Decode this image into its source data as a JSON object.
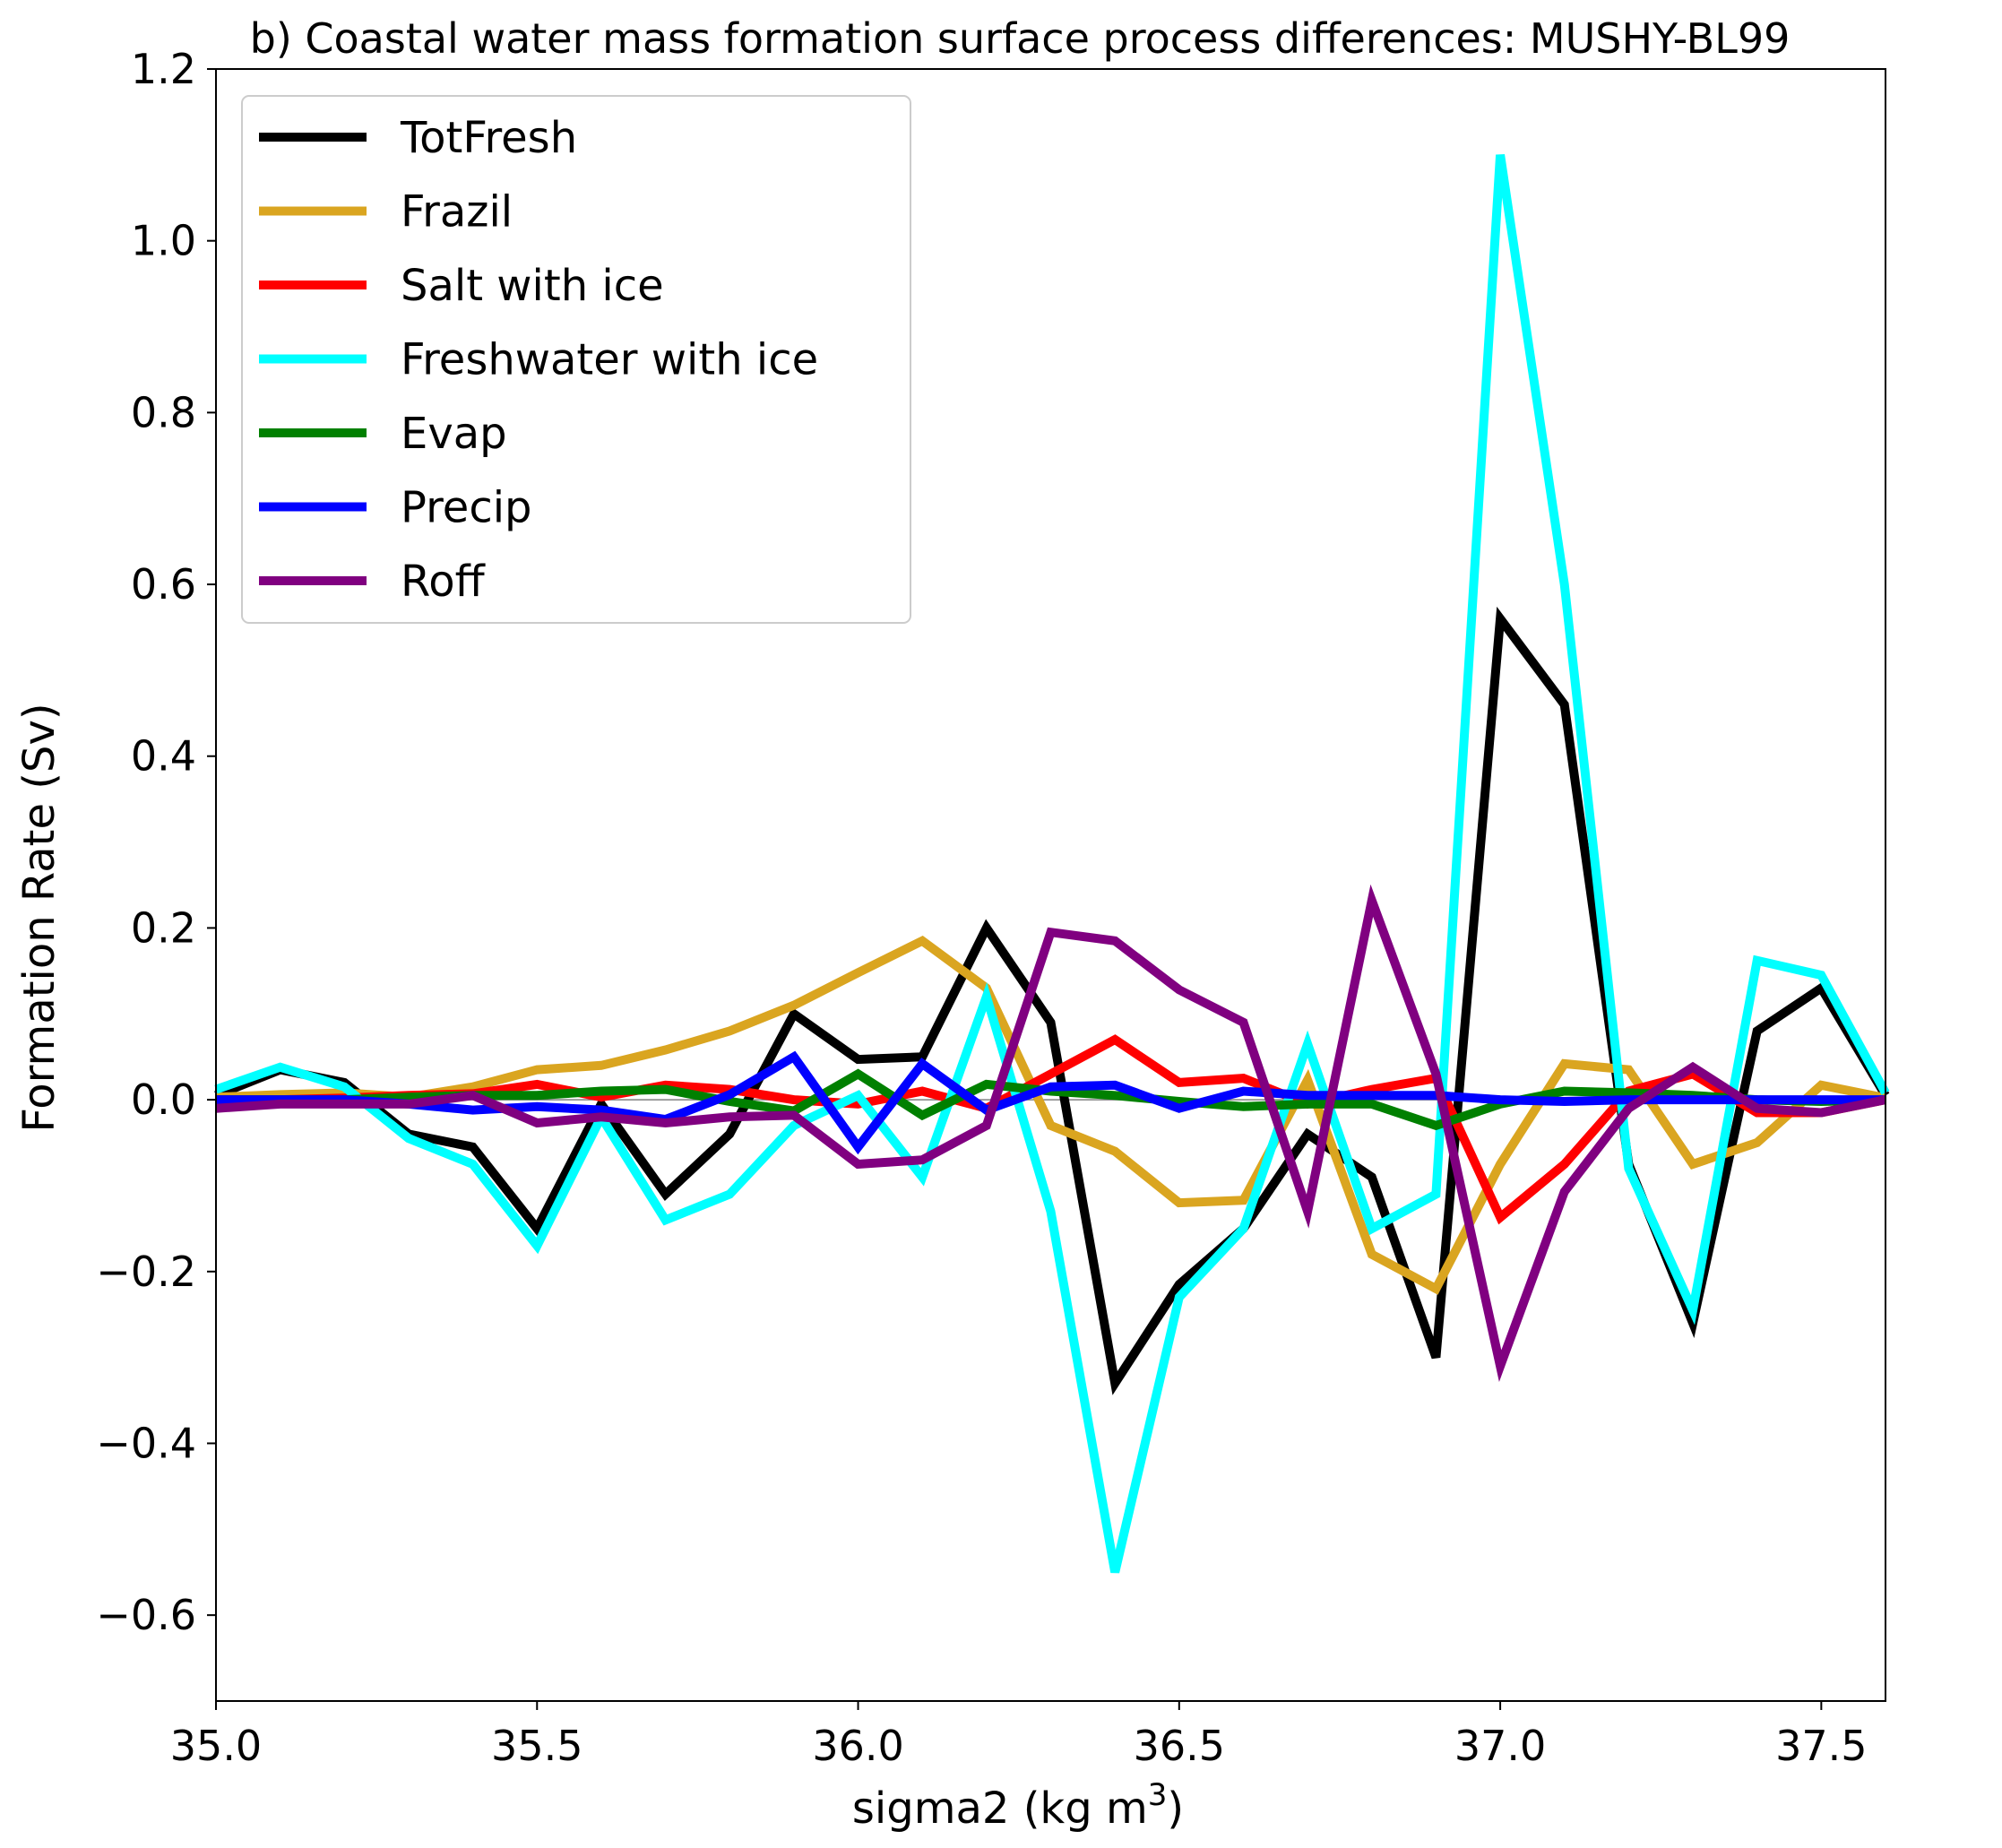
{
  "chart_data": {
    "type": "line",
    "title": "b) Coastal water mass formation surface process differences: MUSHY-BL99",
    "xlabel": "sigma2 (kg m",
    "xlabel_sup": "3",
    "xlabel_end": ")",
    "ylabel": "Formation Rate (Sv)",
    "xlim": [
      35.0,
      37.6
    ],
    "ylim": [
      -0.7,
      1.2
    ],
    "xticks": [
      35.0,
      35.5,
      36.0,
      36.5,
      37.0,
      37.5
    ],
    "xtick_labels": [
      "35.0",
      "35.5",
      "36.0",
      "36.5",
      "37.0",
      "37.5"
    ],
    "yticks": [
      -0.6,
      -0.4,
      -0.2,
      0.0,
      0.2,
      0.4,
      0.6,
      0.8,
      1.0,
      1.2
    ],
    "ytick_labels": [
      "−0.6",
      "−0.4",
      "−0.2",
      "0.0",
      "0.2",
      "0.4",
      "0.6",
      "0.8",
      "1.0",
      "1.2"
    ],
    "zero_line": true,
    "grid": false,
    "legend_position": "upper-left",
    "x": [
      35.0,
      35.1,
      35.2,
      35.3,
      35.4,
      35.5,
      35.6,
      35.7,
      35.8,
      35.9,
      36.0,
      36.1,
      36.2,
      36.3,
      36.4,
      36.5,
      36.6,
      36.7,
      36.8,
      36.9,
      37.0,
      37.1,
      37.2,
      37.3,
      37.4,
      37.5,
      37.6
    ],
    "series": [
      {
        "name": "TotFresh",
        "color": "#000000",
        "values": [
          0.005,
          0.035,
          0.02,
          -0.04,
          -0.055,
          -0.15,
          -0.005,
          -0.11,
          -0.04,
          0.1,
          0.047,
          0.05,
          0.2,
          0.09,
          -0.33,
          -0.215,
          -0.15,
          -0.04,
          -0.09,
          -0.3,
          0.56,
          0.46,
          -0.075,
          -0.26,
          0.08,
          0.13,
          0.005
        ]
      },
      {
        "name": "Frazil",
        "color": "#DAA520",
        "values": [
          0.003,
          0.006,
          0.008,
          0.003,
          0.015,
          0.035,
          0.04,
          0.058,
          0.08,
          0.11,
          0.148,
          0.185,
          0.13,
          -0.03,
          -0.06,
          -0.12,
          -0.117,
          0.023,
          -0.18,
          -0.22,
          -0.075,
          0.042,
          0.035,
          -0.075,
          -0.05,
          0.017,
          0.002
        ]
      },
      {
        "name": "Salt with ice",
        "color": "#FF0000",
        "values": [
          0.0,
          0.0,
          0.002,
          0.005,
          0.007,
          0.018,
          0.003,
          0.017,
          0.012,
          0.0,
          -0.005,
          0.01,
          -0.01,
          0.03,
          0.07,
          0.02,
          0.025,
          -0.005,
          0.012,
          0.025,
          -0.137,
          -0.075,
          0.01,
          0.03,
          -0.015,
          -0.015,
          0.0
        ]
      },
      {
        "name": "Freshwater with ice",
        "color": "#00FFFF",
        "values": [
          0.012,
          0.038,
          0.015,
          -0.045,
          -0.075,
          -0.17,
          -0.02,
          -0.14,
          -0.11,
          -0.03,
          0.005,
          -0.09,
          0.12,
          -0.13,
          -0.55,
          -0.23,
          -0.15,
          0.065,
          -0.15,
          -0.11,
          1.1,
          0.6,
          -0.08,
          -0.245,
          0.162,
          0.145,
          0.008
        ]
      },
      {
        "name": "Evap",
        "color": "#008000",
        "values": [
          0.0,
          0.0,
          0.0,
          0.003,
          0.005,
          0.005,
          0.01,
          0.012,
          -0.002,
          -0.013,
          0.03,
          -0.018,
          0.018,
          0.01,
          0.005,
          -0.002,
          -0.008,
          -0.005,
          -0.005,
          -0.03,
          -0.005,
          0.01,
          0.008,
          0.005,
          0.0,
          -0.002,
          0.0
        ]
      },
      {
        "name": "Precip",
        "color": "#0000FF",
        "values": [
          0.0,
          0.0,
          0.0,
          -0.005,
          -0.012,
          -0.008,
          -0.012,
          -0.023,
          0.006,
          0.05,
          -0.055,
          0.042,
          -0.012,
          0.015,
          0.017,
          -0.01,
          0.01,
          0.005,
          0.005,
          0.005,
          0.0,
          -0.002,
          0.0,
          0.0,
          0.0,
          0.0,
          0.0
        ]
      },
      {
        "name": "Roff",
        "color": "#800080",
        "values": [
          -0.01,
          -0.005,
          -0.005,
          -0.005,
          0.005,
          -0.027,
          -0.02,
          -0.027,
          -0.02,
          -0.018,
          -0.075,
          -0.07,
          -0.03,
          0.195,
          0.185,
          0.128,
          0.09,
          -0.13,
          0.232,
          0.03,
          -0.31,
          -0.107,
          -0.01,
          0.038,
          -0.01,
          -0.015,
          0.0
        ]
      }
    ]
  }
}
